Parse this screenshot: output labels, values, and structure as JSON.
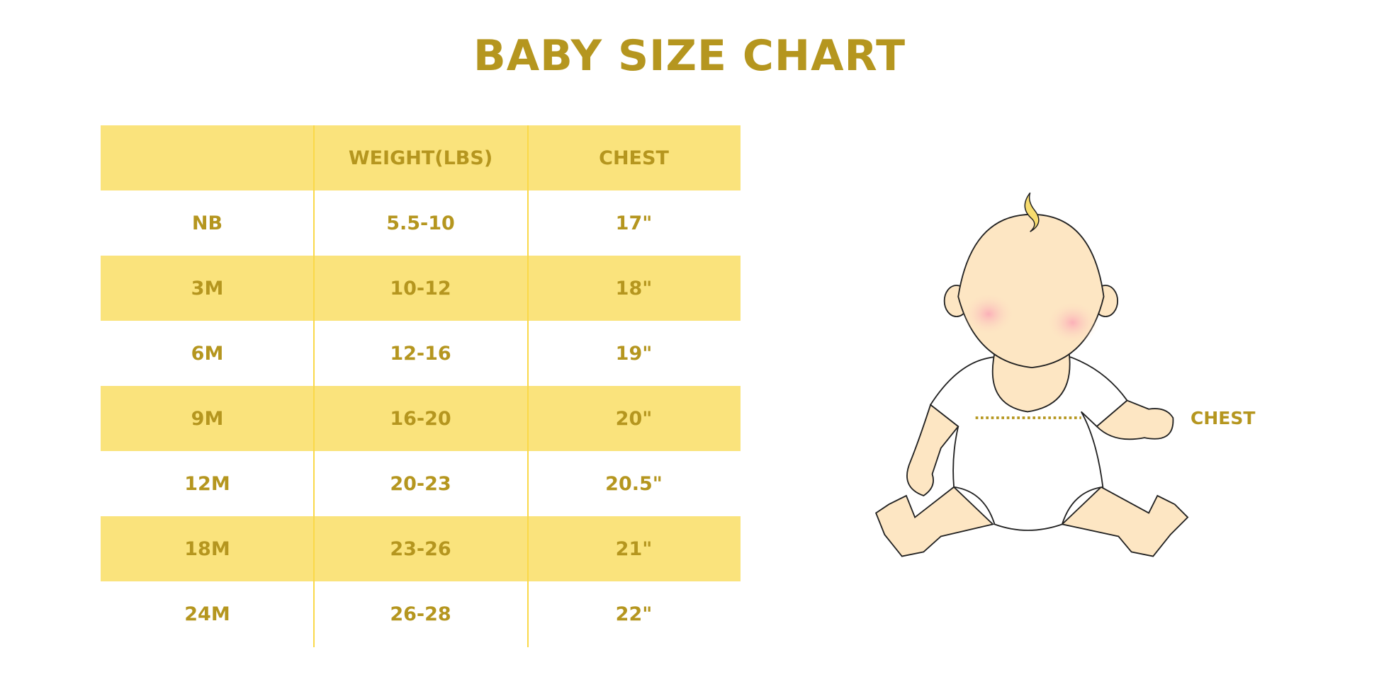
{
  "title": "BABY SIZE CHART",
  "table": {
    "headers": [
      "",
      "WEIGHT(LBS)",
      "CHEST"
    ],
    "rows": [
      [
        "NB",
        "5.5-10",
        "17\""
      ],
      [
        "3M",
        "10-12",
        "18\""
      ],
      [
        "6M",
        "12-16",
        "19\""
      ],
      [
        "9M",
        "16-20",
        "20\""
      ],
      [
        "12M",
        "20-23",
        "20.5\""
      ],
      [
        "18M",
        "23-26",
        "21\""
      ],
      [
        "24M",
        "26-28",
        "22\""
      ]
    ]
  },
  "illustration": {
    "chest_label": "CHEST"
  },
  "colors": {
    "text": "#b5961f",
    "band": "#fae37c",
    "skin": "#fde6c3",
    "cheek": "#fbb8bd"
  }
}
